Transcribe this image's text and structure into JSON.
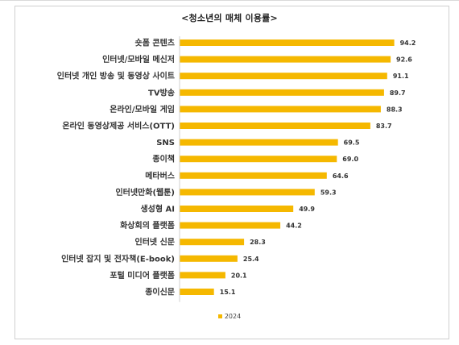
{
  "chart_data": {
    "type": "bar",
    "orientation": "horizontal",
    "title": "<청소년의 매체 이용률>",
    "categories": [
      "숏폼 콘텐츠",
      "인터넷/모바일 메신저",
      "인터넷 개인 방송 및 동영상 사이트",
      "TV방송",
      "온라인/모바일 게임",
      "온라인 동영상제공 서비스(OTT)",
      "SNS",
      "종이책",
      "메타버스",
      "인터넷만화(웹툰)",
      "생성형 AI",
      "화상회의 플랫폼",
      "인터넷 신문",
      "인터넷 잡지 및 전자책(E-book)",
      "포털 미디어 플랫폼",
      "종이신문"
    ],
    "series": [
      {
        "name": "2024",
        "values": [
          94.2,
          92.6,
          91.1,
          89.7,
          88.3,
          83.7,
          69.5,
          69.0,
          64.6,
          59.3,
          49.9,
          44.2,
          28.3,
          25.4,
          20.1,
          15.1
        ]
      }
    ],
    "value_labels": [
      "94.2",
      "92.6",
      "91.1",
      "89.7",
      "88.3",
      "83.7",
      "69.5",
      "69.0",
      "64.6",
      "59.3",
      "49.9",
      "44.2",
      "28.3",
      "25.4",
      "20.1",
      "15.1"
    ],
    "color": "#f5b800",
    "xlim": [
      0,
      100
    ],
    "grid": false,
    "legend_position": "bottom"
  }
}
